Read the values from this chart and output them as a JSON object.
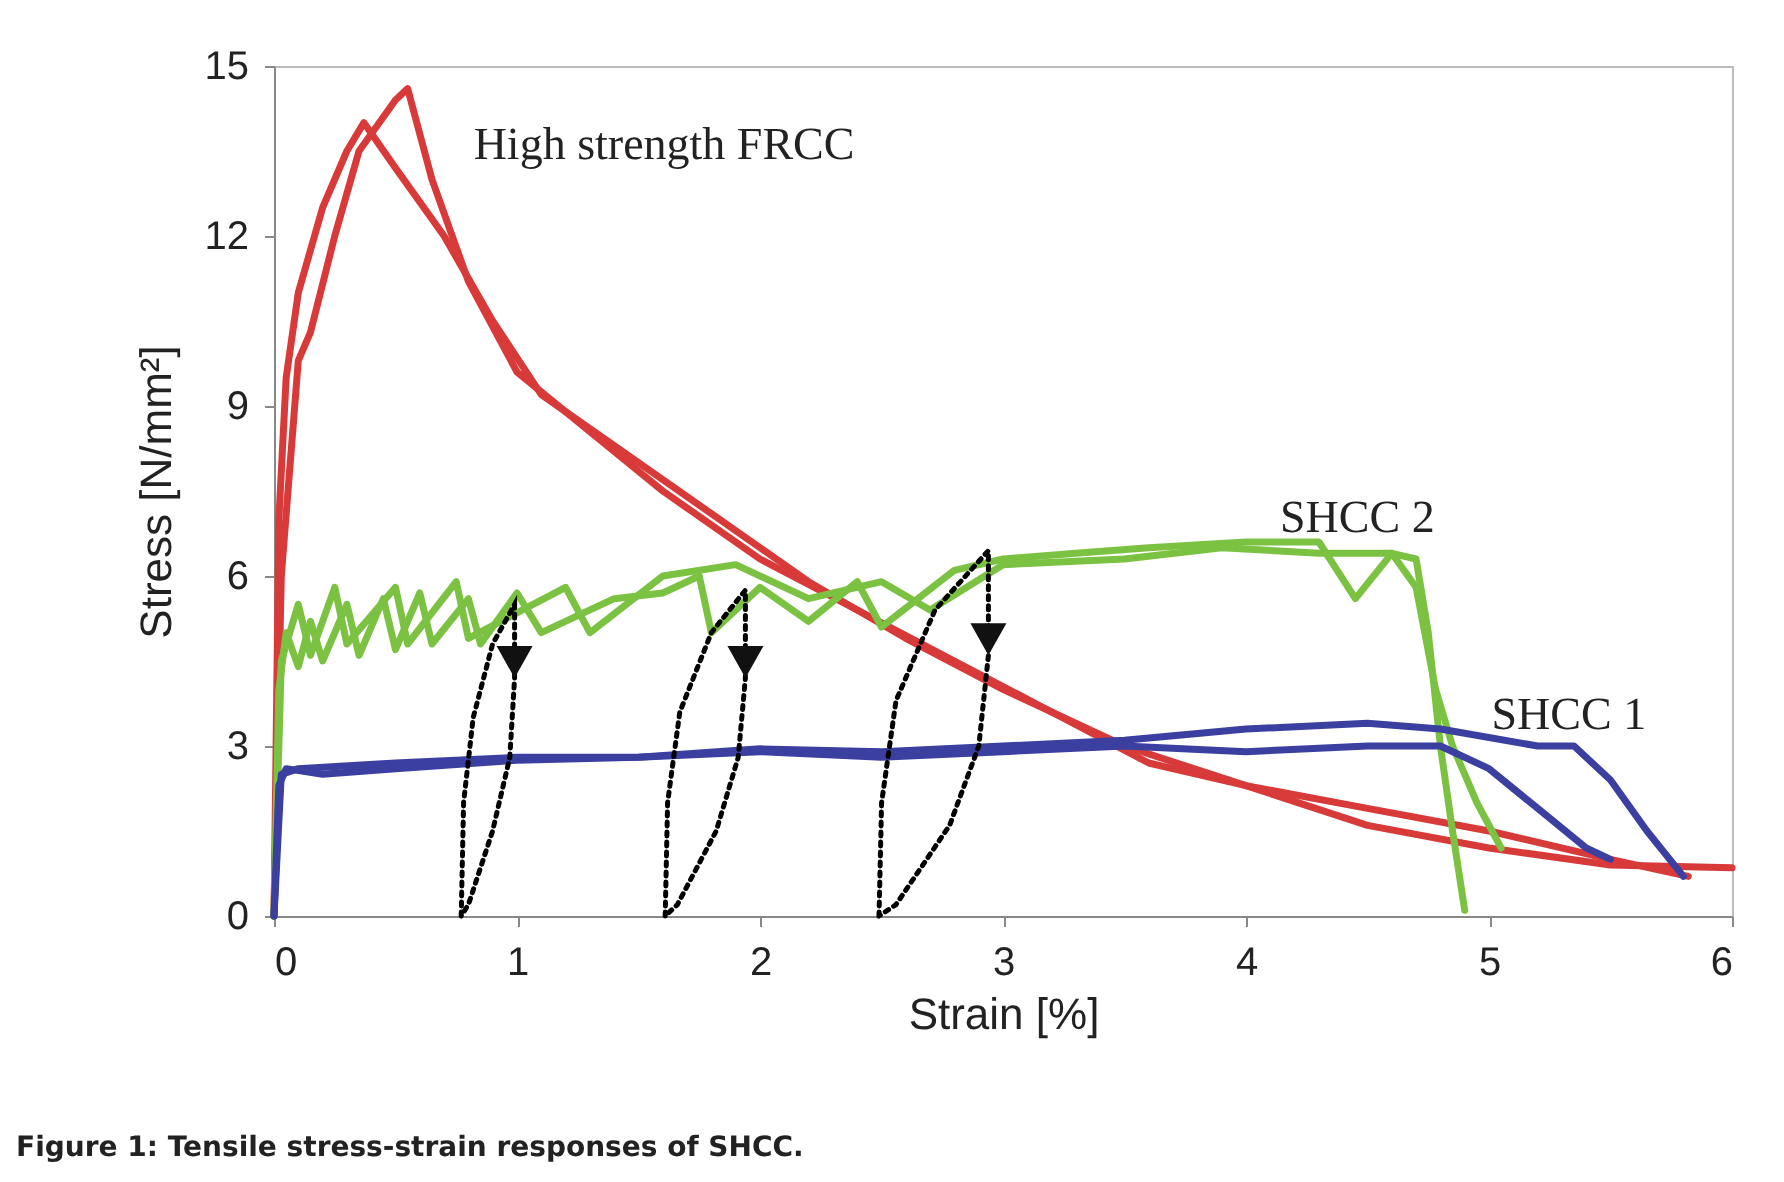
{
  "chart_data": {
    "type": "line",
    "xlabel": "Strain [%]",
    "ylabel": "Stress [N/mm²]",
    "xlim": [
      0,
      6
    ],
    "xticks": [
      0,
      1,
      2,
      3,
      4,
      5,
      6
    ],
    "ylim": [
      0,
      15
    ],
    "yticks": [
      0,
      3,
      6,
      9,
      12,
      15
    ],
    "grid": false,
    "marker": "none",
    "line_style": "solid",
    "annotations": [
      "Figure 1: Tensile stress-strain responses of SHCC."
    ],
    "series": [
      {
        "color": "#d83a3a",
        "x": [
          0,
          0.02,
          0.05,
          0.1,
          0.2,
          0.3,
          0.37,
          0.5,
          0.7,
          0.9,
          1.1,
          1.4,
          1.8,
          2.2,
          2.6,
          3.0,
          3.5,
          4.0,
          4.5,
          5.0,
          5.5,
          6.0
        ],
        "values": [
          0,
          7,
          9.5,
          11,
          12.5,
          13.5,
          14.0,
          13.2,
          12.0,
          10.5,
          9.2,
          8.3,
          7.1,
          5.9,
          4.9,
          4.0,
          3.0,
          2.3,
          1.6,
          1.2,
          0.9,
          0.85
        ]
      },
      {
        "name": "High strength FRCC",
        "color": "#d83a3a",
        "x": [
          0,
          0.03,
          0.1,
          0.15,
          0.25,
          0.35,
          0.5,
          0.55,
          0.65,
          0.8,
          1.0,
          1.2,
          1.6,
          2.0,
          2.4,
          2.8,
          3.2,
          3.6,
          4.0,
          4.5,
          5.0,
          5.5,
          5.82
        ],
        "values": [
          0,
          6,
          9.8,
          10.3,
          12.0,
          13.5,
          14.4,
          14.6,
          13.0,
          11.2,
          9.6,
          8.9,
          7.5,
          6.3,
          5.4,
          4.5,
          3.6,
          2.7,
          2.3,
          1.9,
          1.5,
          1.0,
          0.7
        ]
      },
      {
        "name": "SHCC 2",
        "color": "#7cc242",
        "x": [
          0,
          0.02,
          0.05,
          0.1,
          0.15,
          0.2,
          0.3,
          0.35,
          0.45,
          0.5,
          0.6,
          0.65,
          0.8,
          0.85,
          1.0,
          1.1,
          1.4,
          1.6,
          1.75,
          1.8,
          2.0,
          2.2,
          2.4,
          2.5,
          2.8,
          3.0,
          3.3,
          3.6,
          4.0,
          4.3,
          4.45,
          4.6,
          4.7,
          4.75,
          4.8,
          4.85,
          4.9
        ],
        "values": [
          0,
          4,
          5.0,
          4.4,
          5.2,
          4.5,
          5.5,
          4.6,
          5.6,
          4.7,
          5.7,
          4.8,
          5.6,
          4.8,
          5.7,
          5.0,
          5.6,
          5.7,
          6.0,
          5.0,
          5.8,
          5.2,
          5.9,
          5.1,
          6.1,
          6.3,
          6.4,
          6.5,
          6.6,
          6.6,
          5.6,
          6.4,
          6.3,
          5.0,
          3.0,
          1.5,
          0.1
        ]
      },
      {
        "color": "#7cc242",
        "x": [
          0,
          0.03,
          0.1,
          0.15,
          0.25,
          0.3,
          0.5,
          0.55,
          0.75,
          0.8,
          1.2,
          1.3,
          1.6,
          1.9,
          2.2,
          2.5,
          2.7,
          3.0,
          3.5,
          3.9,
          4.3,
          4.6,
          4.7,
          4.78,
          4.85,
          4.95,
          5.05
        ],
        "values": [
          0,
          4.5,
          5.5,
          4.6,
          5.8,
          4.8,
          5.8,
          4.8,
          5.9,
          4.9,
          5.8,
          5.0,
          6.0,
          6.2,
          5.6,
          5.9,
          5.4,
          6.2,
          6.3,
          6.5,
          6.4,
          6.4,
          5.8,
          4.0,
          3.0,
          2.0,
          1.2
        ]
      },
      {
        "color": "#3b3fa0",
        "x": [
          0,
          0.02,
          0.05,
          0.2,
          0.5,
          1.0,
          1.5,
          2.0,
          2.5,
          3.0,
          3.5,
          4.0,
          4.5,
          4.8,
          5.0,
          5.2,
          5.4,
          5.5
        ],
        "values": [
          0,
          2.3,
          2.6,
          2.5,
          2.6,
          2.75,
          2.8,
          2.9,
          2.8,
          2.9,
          3.0,
          2.9,
          3.0,
          3.0,
          2.6,
          1.9,
          1.2,
          1.0
        ]
      },
      {
        "name": "SHCC 1",
        "color": "#3b3fa0",
        "x": [
          0,
          0.03,
          0.1,
          0.5,
          1.0,
          1.5,
          2.0,
          2.5,
          3.0,
          3.5,
          4.0,
          4.5,
          4.8,
          5.2,
          5.35,
          5.5,
          5.65,
          5.8
        ],
        "values": [
          0,
          2.5,
          2.6,
          2.7,
          2.8,
          2.8,
          2.95,
          2.9,
          3.0,
          3.1,
          3.3,
          3.4,
          3.3,
          3.0,
          3.0,
          2.4,
          1.5,
          0.7
        ]
      }
    ]
  }
}
